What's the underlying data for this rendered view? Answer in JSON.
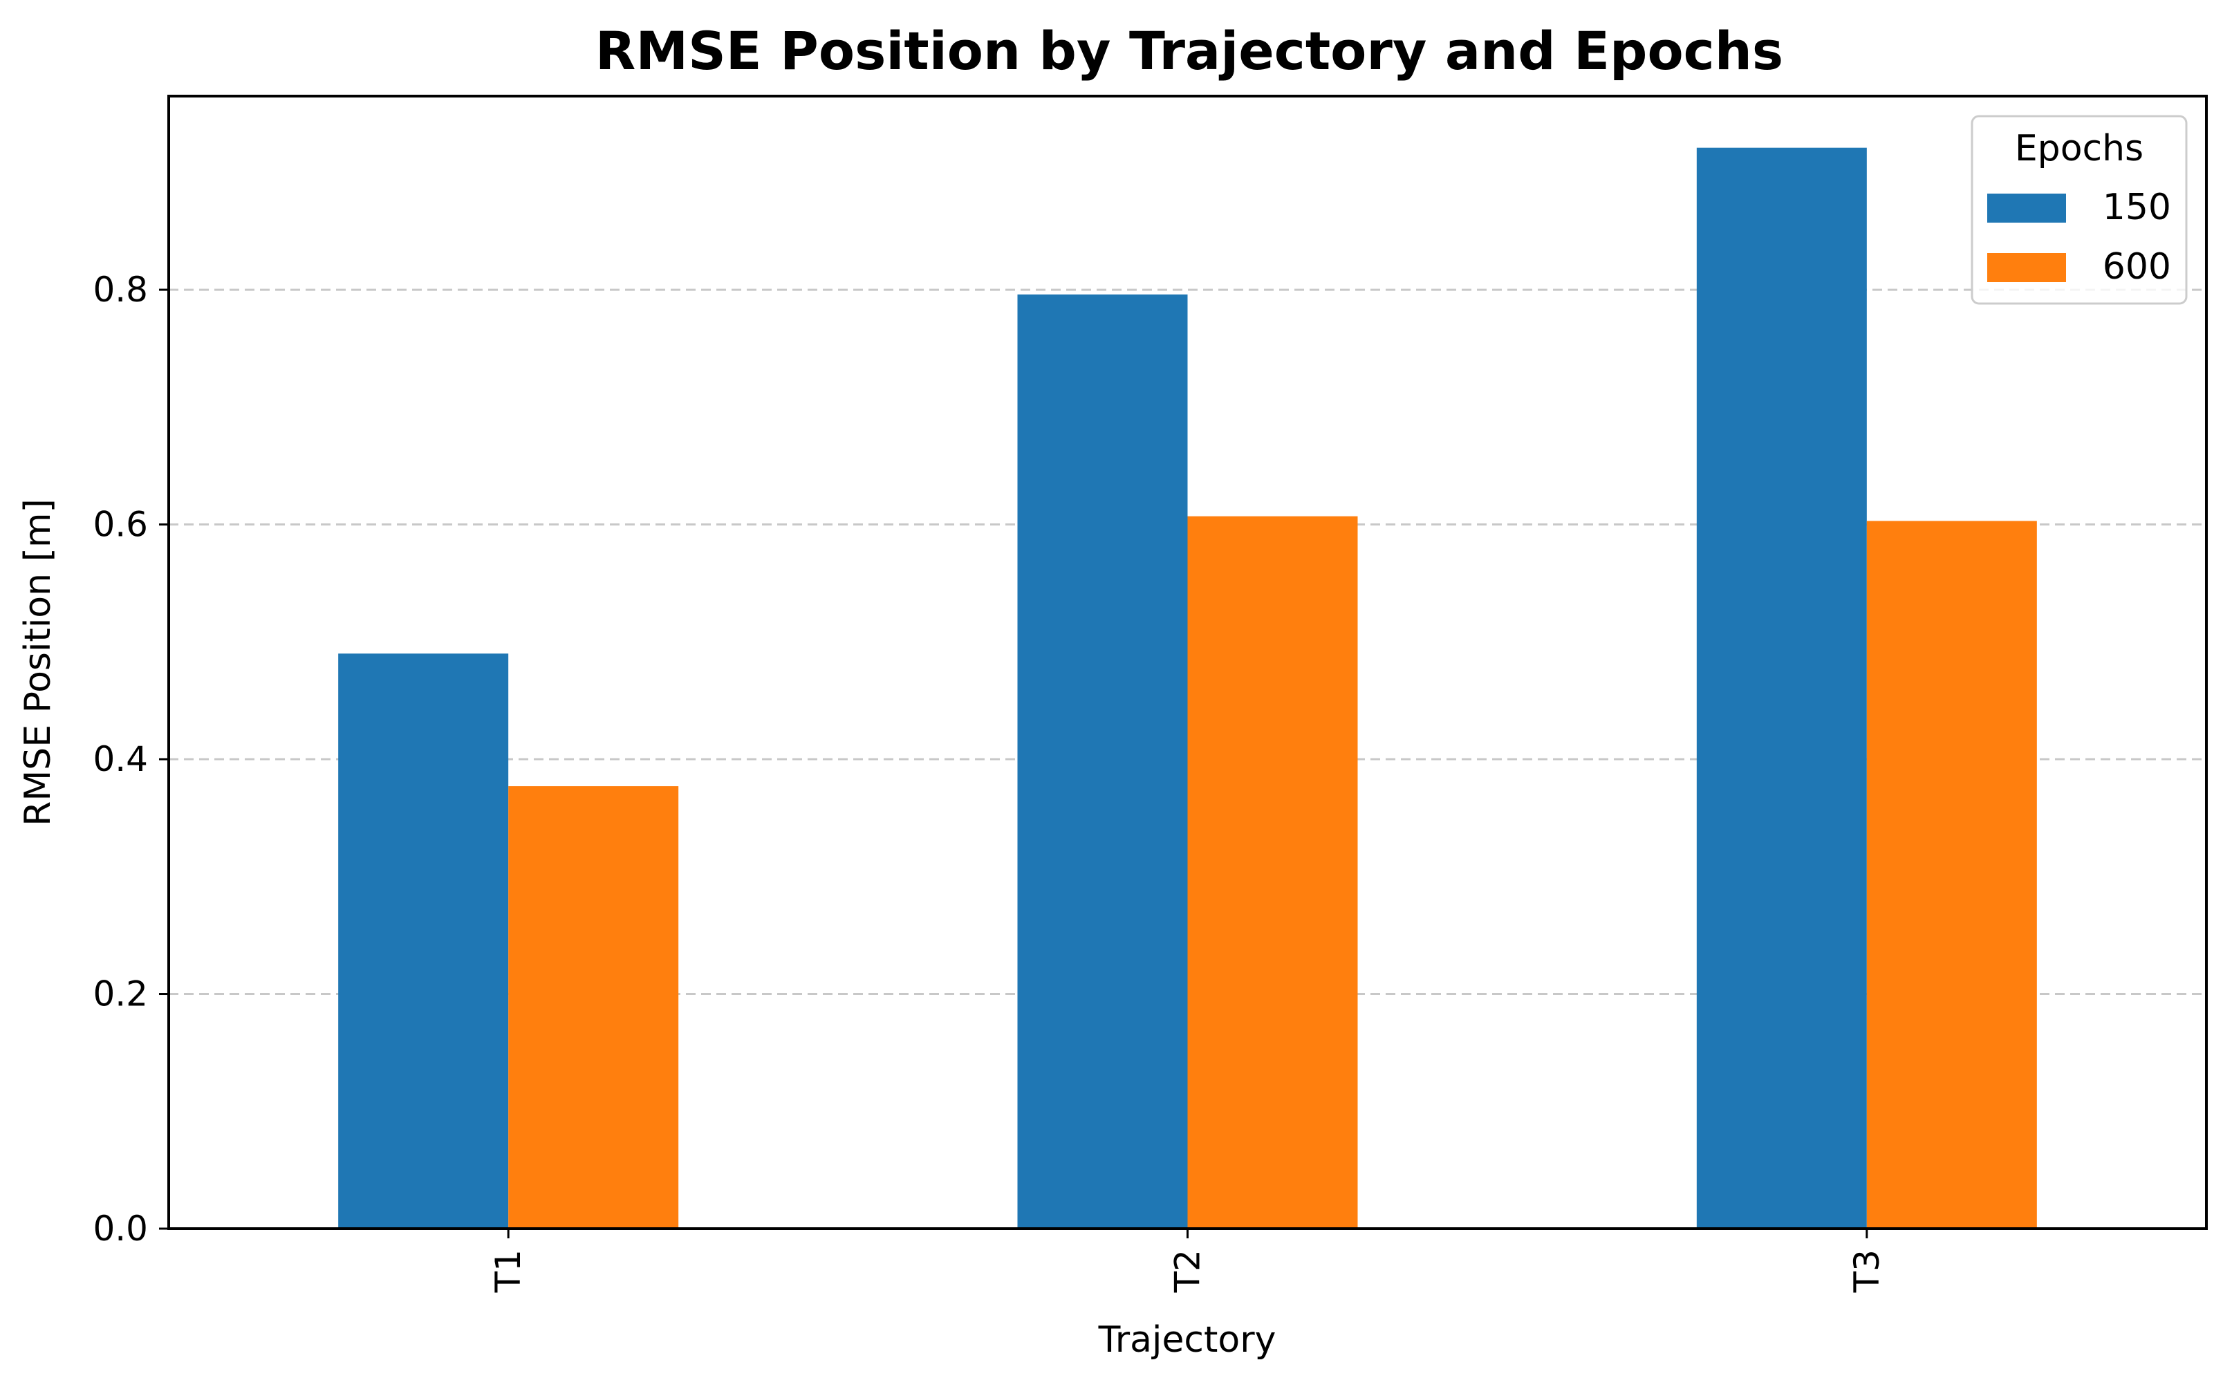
{
  "chart_data": {
    "type": "bar",
    "title": "RMSE Position by Trajectory and Epochs",
    "xlabel": "Trajectory",
    "ylabel": "RMSE Position [m]",
    "categories": [
      "T1",
      "T2",
      "T3"
    ],
    "series": [
      {
        "name": "150",
        "values": [
          0.49,
          0.796,
          0.921
        ],
        "color": "#1f77b4"
      },
      {
        "name": "600",
        "values": [
          0.377,
          0.607,
          0.603
        ],
        "color": "#ff7f0e"
      }
    ],
    "ylim": [
      0,
      0.965
    ],
    "yticks": [
      "0.0",
      "0.2",
      "0.4",
      "0.6",
      "0.8"
    ],
    "grid": "y-dashed",
    "legend": {
      "title": "Epochs",
      "placement": "top-right"
    }
  }
}
